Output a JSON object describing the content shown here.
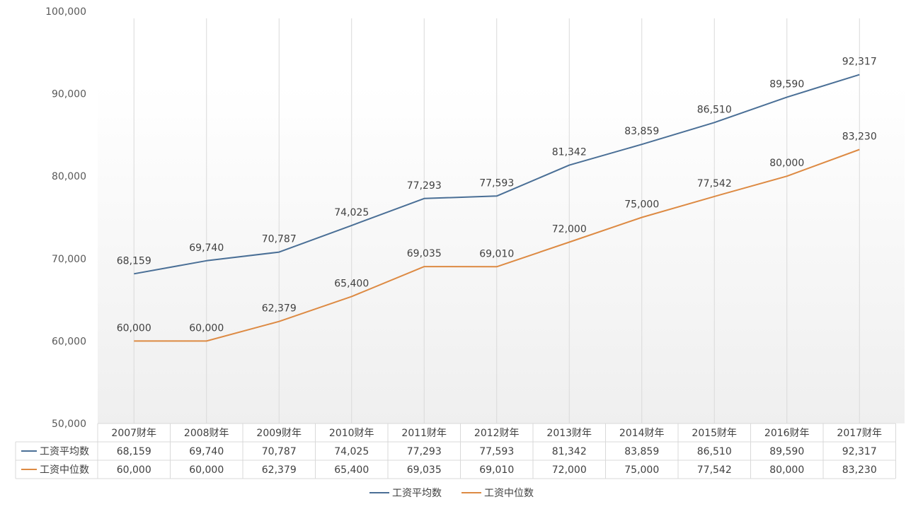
{
  "colors": {
    "series_mean": "#4a6f96",
    "series_median": "#dd8a43",
    "gridline": "#d9d9d9",
    "text": "#595959"
  },
  "chart_data": {
    "type": "line",
    "categories": [
      "2007财年",
      "2008财年",
      "2009财年",
      "2010财年",
      "2011财年",
      "2012财年",
      "2013财年",
      "2014财年",
      "2015财年",
      "2016财年",
      "2017财年"
    ],
    "series": [
      {
        "name": "工资平均数",
        "values": [
          68159,
          69740,
          70787,
          74025,
          77293,
          77593,
          81342,
          83859,
          86510,
          89590,
          92317
        ],
        "labels": [
          "68,159",
          "69,740",
          "70,787",
          "74,025",
          "77,293",
          "77,593",
          "81,342",
          "83,859",
          "86,510",
          "89,590",
          "92,317"
        ],
        "color": "#4a6f96"
      },
      {
        "name": "工资中位数",
        "values": [
          60000,
          60000,
          62379,
          65400,
          69035,
          69010,
          72000,
          75000,
          77542,
          80000,
          83230
        ],
        "labels": [
          "60,000",
          "60,000",
          "62,379",
          "65,400",
          "69,035",
          "69,010",
          "72,000",
          "75,000",
          "77,542",
          "80,000",
          "83,230"
        ],
        "color": "#dd8a43"
      }
    ],
    "ylim": [
      50000,
      100000
    ],
    "yticks": [
      50000,
      60000,
      70000,
      80000,
      90000,
      100000
    ],
    "ytick_labels": [
      "50,000",
      "60,000",
      "70,000",
      "80,000",
      "90,000",
      "100,000"
    ],
    "grid": "vertical",
    "legend": "bottom-center",
    "data_table": true
  }
}
